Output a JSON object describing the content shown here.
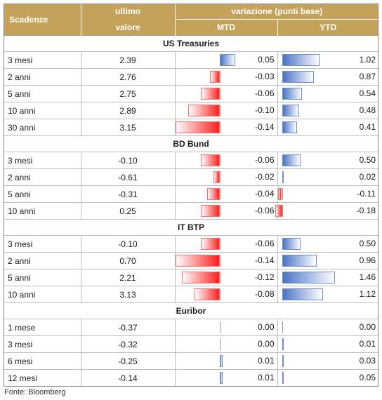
{
  "header": {
    "col_scadenze": "Scadenze",
    "col_ultimo_line1": "ultimo",
    "col_ultimo_line2": "valore",
    "col_variazione": "variazione (punti base)",
    "col_mtd": "MTD",
    "col_ytd": "YTD"
  },
  "sections": [
    {
      "title": "US Treasuries",
      "rows": [
        {
          "scadenza": "3 mesi",
          "ultimo": "2.39",
          "mtd": "0.05",
          "ytd": "1.02"
        },
        {
          "scadenza": "2 anni",
          "ultimo": "2.76",
          "mtd": "-0.03",
          "ytd": "0.87"
        },
        {
          "scadenza": "5 anni",
          "ultimo": "2.75",
          "mtd": "-0.06",
          "ytd": "0.54"
        },
        {
          "scadenza": "10 anni",
          "ultimo": "2.89",
          "mtd": "-0.10",
          "ytd": "0.48"
        },
        {
          "scadenza": "30 anni",
          "ultimo": "3.15",
          "mtd": "-0.14",
          "ytd": "0.41"
        }
      ]
    },
    {
      "title": "BD Bund",
      "rows": [
        {
          "scadenza": "3 mesi",
          "ultimo": "-0.10",
          "mtd": "-0.06",
          "ytd": "0.50"
        },
        {
          "scadenza": "2 anni",
          "ultimo": "-0.61",
          "mtd": "-0.02",
          "ytd": "0.02"
        },
        {
          "scadenza": "5 anni",
          "ultimo": "-0.31",
          "mtd": "-0.04",
          "ytd": "-0.11"
        },
        {
          "scadenza": "10 anni",
          "ultimo": "0.25",
          "mtd": "-0.06",
          "ytd": "-0.18"
        }
      ]
    },
    {
      "title": "IT BTP",
      "rows": [
        {
          "scadenza": "3 mesi",
          "ultimo": "-0.10",
          "mtd": "-0.06",
          "ytd": "0.50"
        },
        {
          "scadenza": "2 anni",
          "ultimo": "0.70",
          "mtd": "-0.14",
          "ytd": "0.96"
        },
        {
          "scadenza": "5 anni",
          "ultimo": "2.21",
          "mtd": "-0.12",
          "ytd": "1.46"
        },
        {
          "scadenza": "10 anni",
          "ultimo": "3.13",
          "mtd": "-0.08",
          "ytd": "1.12"
        }
      ]
    },
    {
      "title": "Euribor",
      "rows": [
        {
          "scadenza": "1 mese",
          "ultimo": "-0.37",
          "mtd": "0.00",
          "ytd": "0.00"
        },
        {
          "scadenza": "3 mesi",
          "ultimo": "-0.32",
          "mtd": "0.00",
          "ytd": "0.01"
        },
        {
          "scadenza": "6 mesi",
          "ultimo": "-0.25",
          "mtd": "0.01",
          "ytd": "0.03"
        },
        {
          "scadenza": "12 mesi",
          "ultimo": "-0.14",
          "mtd": "0.01",
          "ytd": "0.05"
        }
      ]
    }
  ],
  "footer": "Fonte: Bloomberg",
  "colors": {
    "header_bg": "#c5a259",
    "negative_bar": "#ff1f1f",
    "positive_bar": "#4a73c4"
  }
}
